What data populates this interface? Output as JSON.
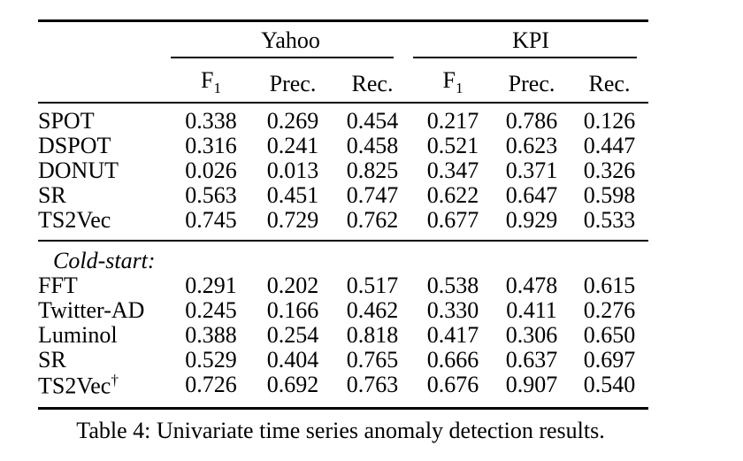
{
  "colors": {
    "background": "#ffffff",
    "text": "#000000",
    "rule": "#000000"
  },
  "table": {
    "groups": [
      {
        "label": "Yahoo"
      },
      {
        "label": "KPI"
      }
    ],
    "metric_headers": {
      "f1_base": "F",
      "f1_sub": "1",
      "prec": "Prec.",
      "rec": "Rec."
    },
    "sections": [
      {
        "heading": null,
        "rows": [
          {
            "label": "SPOT",
            "label_sup": null,
            "values": [
              "0.338",
              "0.269",
              "0.454",
              "0.217",
              "0.786",
              "0.126"
            ],
            "bold_indices": []
          },
          {
            "label": "DSPOT",
            "label_sup": null,
            "values": [
              "0.316",
              "0.241",
              "0.458",
              "0.521",
              "0.623",
              "0.447"
            ],
            "bold_indices": []
          },
          {
            "label": "DONUT",
            "label_sup": null,
            "values": [
              "0.026",
              "0.013",
              "0.825",
              "0.347",
              "0.371",
              "0.326"
            ],
            "bold_indices": []
          },
          {
            "label": "SR",
            "label_sup": null,
            "values": [
              "0.563",
              "0.451",
              "0.747",
              "0.622",
              "0.647",
              "0.598"
            ],
            "bold_indices": []
          },
          {
            "label": "TS2Vec",
            "label_sup": null,
            "values": [
              "0.745",
              "0.729",
              "0.762",
              "0.677",
              "0.929",
              "0.533"
            ],
            "bold_indices": [
              0,
              3
            ]
          }
        ]
      },
      {
        "heading": "Cold-start:",
        "rows": [
          {
            "label": "FFT",
            "label_sup": null,
            "values": [
              "0.291",
              "0.202",
              "0.517",
              "0.538",
              "0.478",
              "0.615"
            ],
            "bold_indices": []
          },
          {
            "label": "Twitter-AD",
            "label_sup": null,
            "values": [
              "0.245",
              "0.166",
              "0.462",
              "0.330",
              "0.411",
              "0.276"
            ],
            "bold_indices": []
          },
          {
            "label": "Luminol",
            "label_sup": null,
            "values": [
              "0.388",
              "0.254",
              "0.818",
              "0.417",
              "0.306",
              "0.650"
            ],
            "bold_indices": []
          },
          {
            "label": "SR",
            "label_sup": null,
            "values": [
              "0.529",
              "0.404",
              "0.765",
              "0.666",
              "0.637",
              "0.697"
            ],
            "bold_indices": []
          },
          {
            "label": "TS2Vec",
            "label_sup": "†",
            "values": [
              "0.726",
              "0.692",
              "0.763",
              "0.676",
              "0.907",
              "0.540"
            ],
            "bold_indices": [
              0,
              3
            ]
          }
        ]
      }
    ]
  },
  "caption": "Table 4: Univariate time series anomaly detection results."
}
